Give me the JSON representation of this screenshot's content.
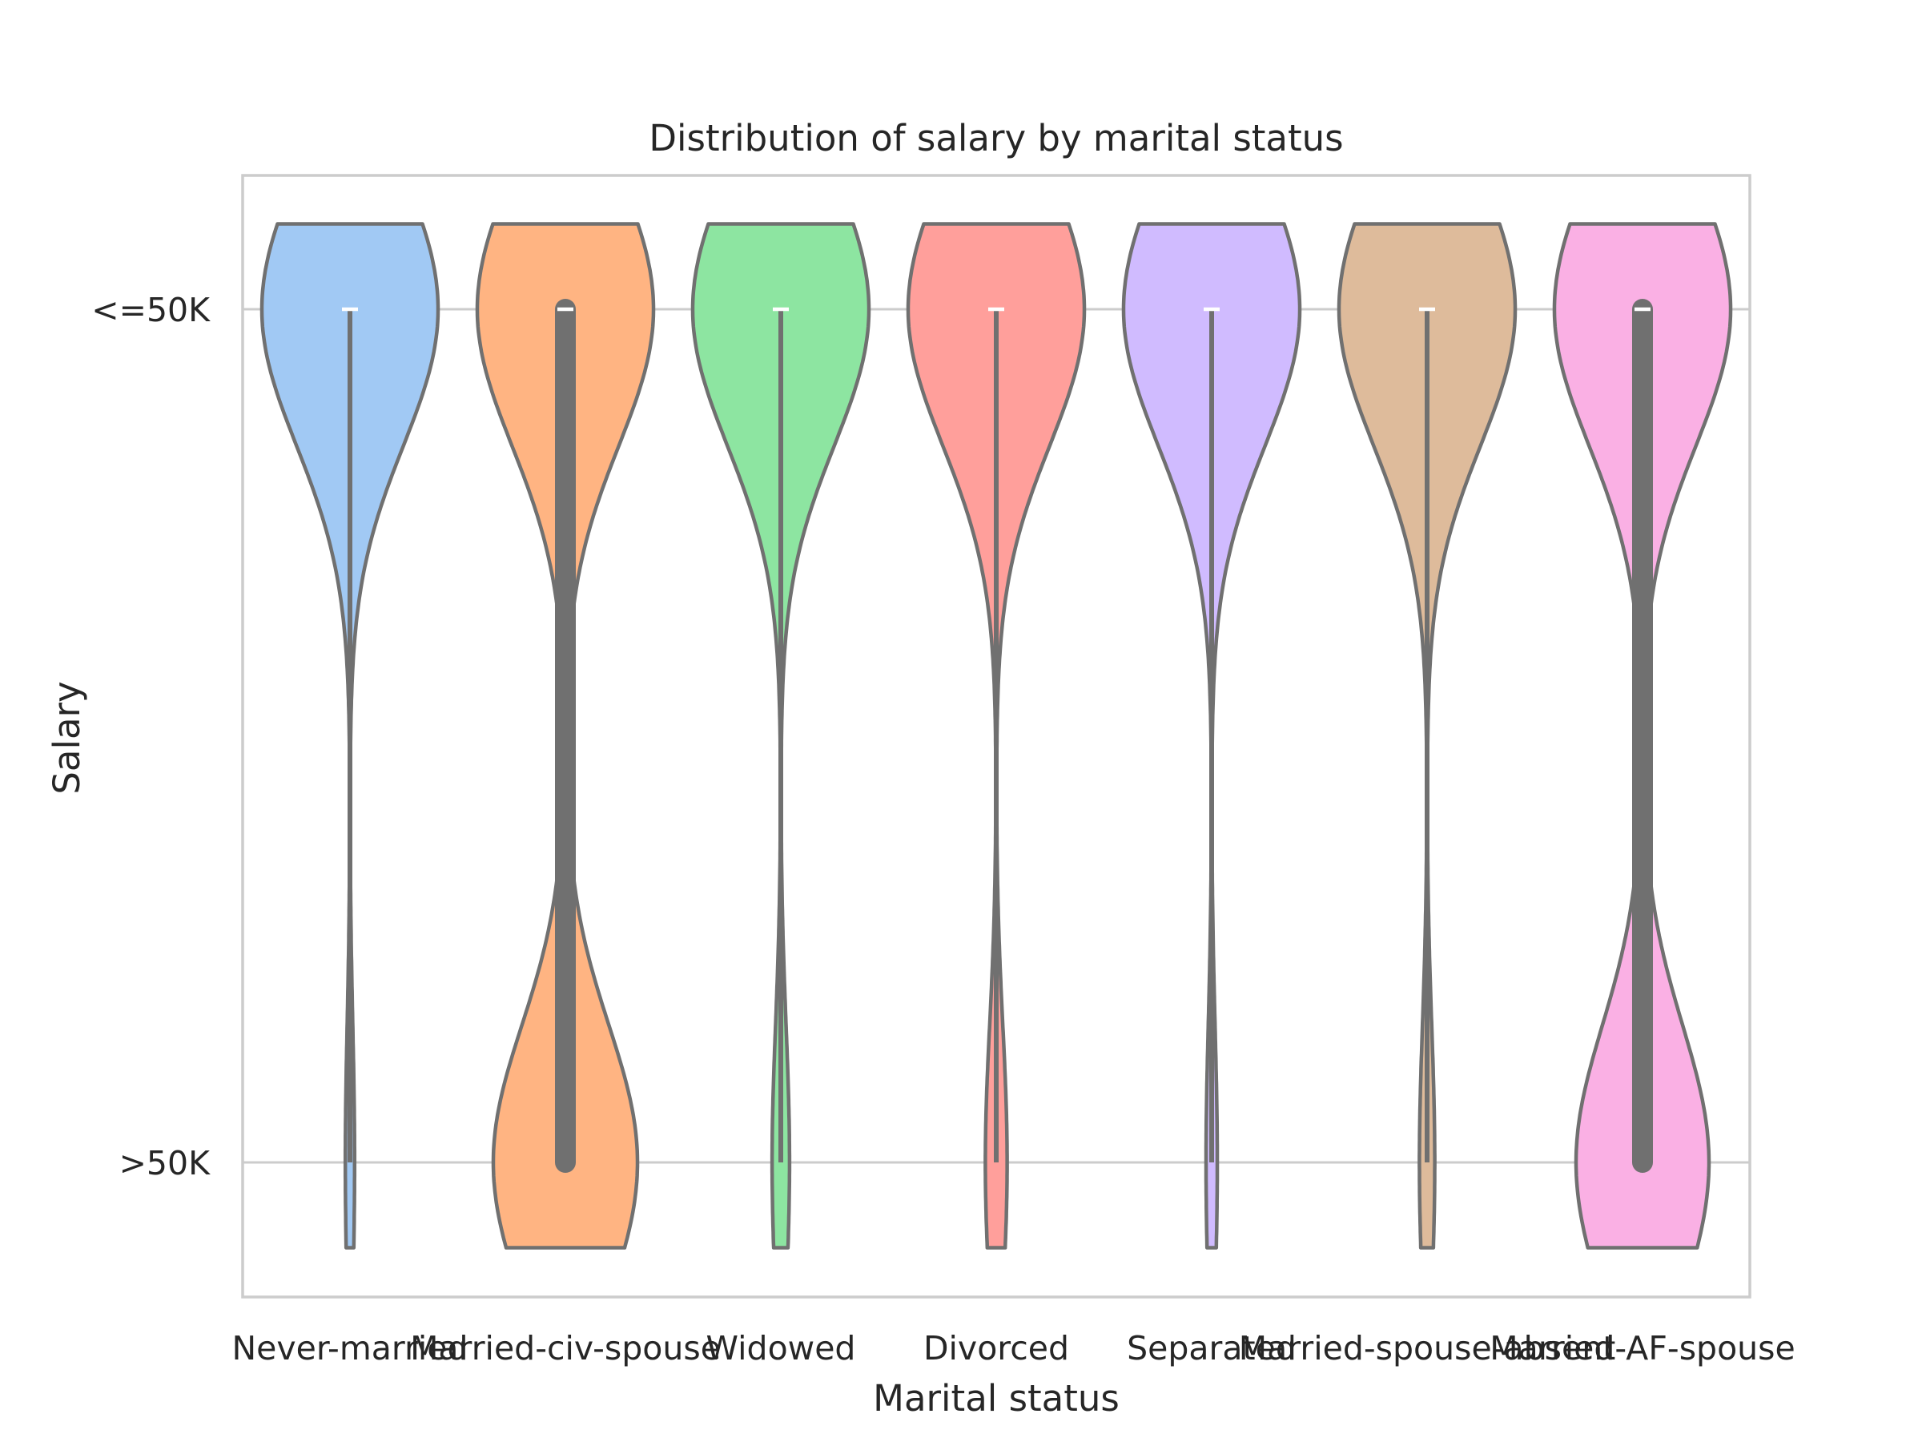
{
  "chart_data": {
    "type": "violin",
    "title": "Distribution of salary by marital status",
    "xlabel": "Marital status",
    "ylabel": "Salary",
    "y_categories": [
      "<=50K",
      ">50K"
    ],
    "grid": "horizontal",
    "categories": [
      "Never-married",
      "Married-civ-spouse",
      "Widowed",
      "Divorced",
      "Separated",
      "Married-spouse-absent",
      "Married-AF-spouse"
    ],
    "series": [
      {
        "category": "Never-married",
        "color": "#a1c9f4",
        "share_gt50k": 0.05,
        "median": "<=50K",
        "q1": "<=50K",
        "q3": "<=50K"
      },
      {
        "category": "Married-civ-spouse",
        "color": "#ffb482",
        "share_gt50k": 0.45,
        "median": "<=50K",
        "q1": "<=50K",
        "q3": ">50K"
      },
      {
        "category": "Widowed",
        "color": "#8de5a1",
        "share_gt50k": 0.09,
        "median": "<=50K",
        "q1": "<=50K",
        "q3": "<=50K"
      },
      {
        "category": "Divorced",
        "color": "#ff9f9b",
        "share_gt50k": 0.11,
        "median": "<=50K",
        "q1": "<=50K",
        "q3": "<=50K"
      },
      {
        "category": "Separated",
        "color": "#d0bbff",
        "share_gt50k": 0.06,
        "median": "<=50K",
        "q1": "<=50K",
        "q3": "<=50K"
      },
      {
        "category": "Married-spouse-absent",
        "color": "#debb9b",
        "share_gt50k": 0.08,
        "median": "<=50K",
        "q1": "<=50K",
        "q3": "<=50K"
      },
      {
        "category": "Married-AF-spouse",
        "color": "#fab0e4",
        "share_gt50k": 0.43,
        "median": "<=50K",
        "q1": "<=50K",
        "q3": ">50K"
      }
    ]
  }
}
